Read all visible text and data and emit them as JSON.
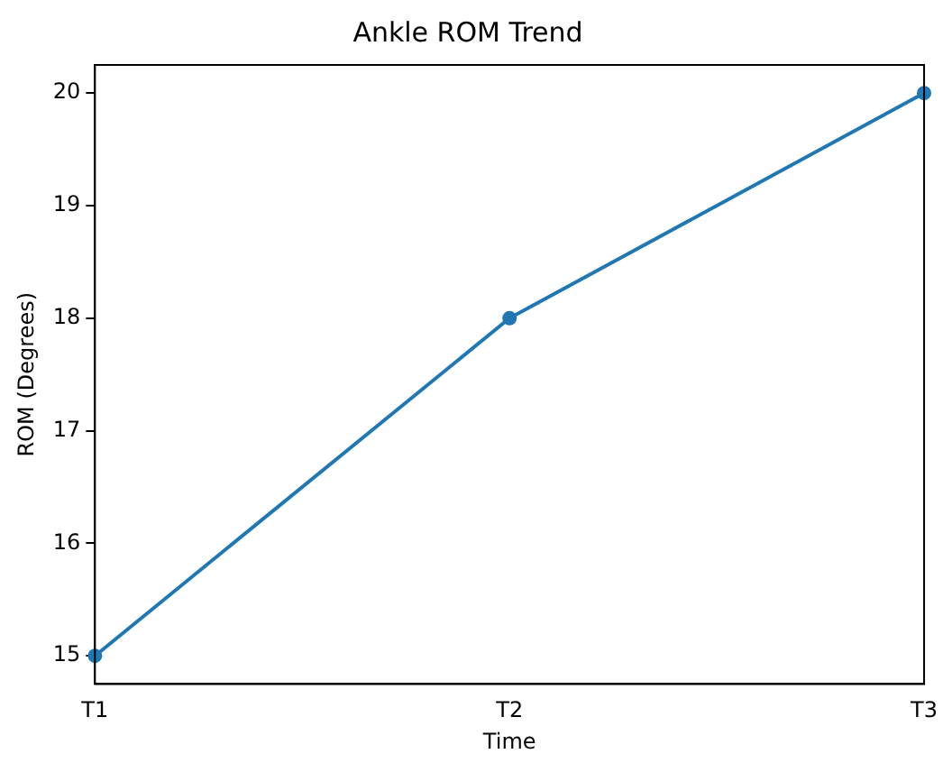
{
  "chart_data": {
    "type": "line",
    "title": "Ankle ROM Trend",
    "xlabel": "Time",
    "ylabel": "ROM (Degrees)",
    "categories": [
      "T1",
      "T2",
      "T3"
    ],
    "series": [
      {
        "color": "#1f77b4",
        "values": [
          15,
          18,
          20
        ]
      }
    ],
    "ylim": [
      14.75,
      20.25
    ],
    "yticks": [
      15,
      16,
      17,
      18,
      19,
      20
    ],
    "grid": false,
    "legend": false,
    "marker": "circle",
    "line_style": "solid"
  }
}
